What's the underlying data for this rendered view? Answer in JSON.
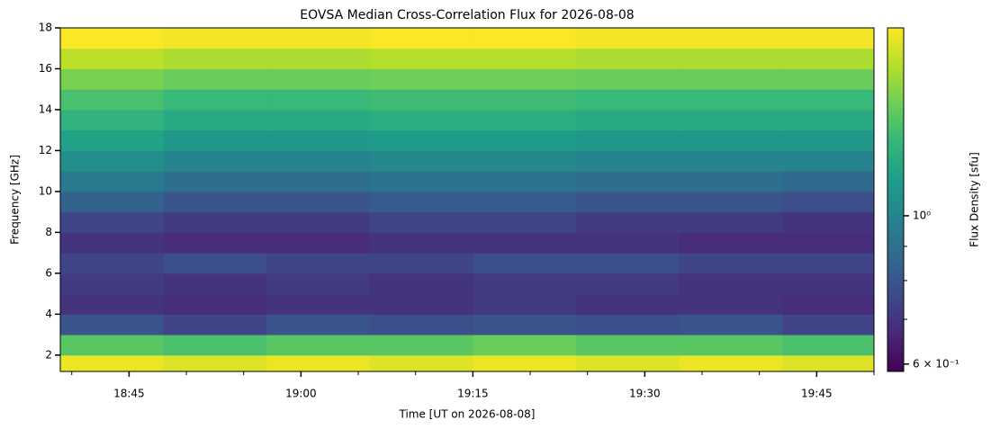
{
  "chart_data": {
    "type": "heatmap",
    "title": "EOVSA Median Cross-Correlation Flux for 2026-08-08",
    "x_label": "Time [UT on 2026-08-08]",
    "y_label": "Frequency [GHz]",
    "colorbar_label": "Flux Density [sfu]",
    "colormap": "viridis",
    "color_scale": "log",
    "clim": [
      0.585,
      1.91
    ],
    "cticks": [
      {
        "value": 0.6,
        "label": "6 × 10⁻¹"
      },
      {
        "value": 1,
        "label": "10⁰"
      }
    ],
    "cminorticks": [
      0.7,
      0.8,
      0.9
    ],
    "xlim": [
      "18:39",
      "19:50"
    ],
    "xticks": [
      "18:45",
      "19:00",
      "19:15",
      "19:30",
      "19:45"
    ],
    "xminorticks": [
      "18:40",
      "18:50",
      "18:55",
      "19:05",
      "19:10",
      "19:20",
      "19:25",
      "19:35",
      "19:40",
      "19:50"
    ],
    "ylim": [
      1.2,
      18
    ],
    "yticks": [
      2,
      4,
      6,
      8,
      10,
      12,
      14,
      16,
      18
    ],
    "x_bins": [
      "18:39",
      "18:48",
      "18:57",
      "19:06",
      "19:15",
      "19:24",
      "19:33",
      "19:42",
      "19:50"
    ],
    "y_bins": [
      1.2,
      2,
      3,
      4,
      5,
      6,
      7,
      8,
      9,
      10,
      11,
      12,
      13,
      14,
      15,
      16,
      17,
      18
    ],
    "values": [
      [
        1.85,
        1.8,
        1.85,
        1.8,
        1.85,
        1.8,
        1.85,
        1.8
      ],
      [
        1.4,
        1.35,
        1.4,
        1.4,
        1.45,
        1.4,
        1.4,
        1.35
      ],
      [
        0.8,
        0.75,
        0.8,
        0.78,
        0.8,
        0.78,
        0.8,
        0.75
      ],
      [
        0.7,
        0.68,
        0.7,
        0.7,
        0.72,
        0.7,
        0.7,
        0.68
      ],
      [
        0.72,
        0.7,
        0.72,
        0.7,
        0.72,
        0.72,
        0.7,
        0.7
      ],
      [
        0.75,
        0.78,
        0.75,
        0.75,
        0.78,
        0.78,
        0.75,
        0.75
      ],
      [
        0.7,
        0.68,
        0.68,
        0.7,
        0.7,
        0.7,
        0.68,
        0.68
      ],
      [
        0.75,
        0.72,
        0.72,
        0.75,
        0.75,
        0.72,
        0.72,
        0.7
      ],
      [
        0.85,
        0.8,
        0.8,
        0.82,
        0.82,
        0.8,
        0.8,
        0.78
      ],
      [
        0.95,
        0.9,
        0.9,
        0.92,
        0.92,
        0.9,
        0.9,
        0.88
      ],
      [
        1.05,
        1.0,
        1.0,
        1.02,
        1.02,
        1.0,
        1.0,
        1.0
      ],
      [
        1.15,
        1.1,
        1.1,
        1.12,
        1.12,
        1.1,
        1.1,
        1.1
      ],
      [
        1.25,
        1.2,
        1.2,
        1.22,
        1.22,
        1.2,
        1.2,
        1.2
      ],
      [
        1.35,
        1.3,
        1.3,
        1.32,
        1.32,
        1.3,
        1.3,
        1.3
      ],
      [
        1.5,
        1.45,
        1.45,
        1.47,
        1.47,
        1.45,
        1.45,
        1.45
      ],
      [
        1.7,
        1.65,
        1.65,
        1.67,
        1.67,
        1.65,
        1.65,
        1.65
      ],
      [
        1.9,
        1.88,
        1.88,
        1.9,
        1.9,
        1.88,
        1.88,
        1.88
      ]
    ]
  }
}
